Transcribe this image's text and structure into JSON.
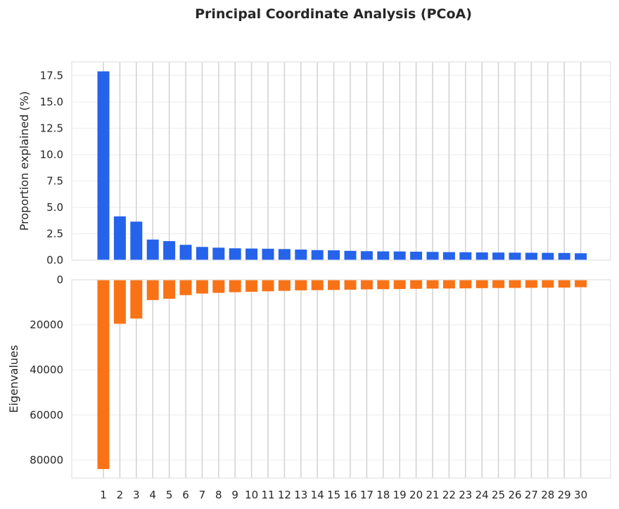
{
  "chart_data": {
    "title": "Principal Coordinate Analysis (PCoA)",
    "type": "bar",
    "categories": [
      "1",
      "2",
      "3",
      "4",
      "5",
      "6",
      "7",
      "8",
      "9",
      "10",
      "11",
      "12",
      "13",
      "14",
      "15",
      "16",
      "17",
      "18",
      "19",
      "20",
      "21",
      "22",
      "23",
      "24",
      "25",
      "26",
      "27",
      "28",
      "29",
      "30"
    ],
    "grid": true,
    "panels": [
      {
        "name": "proportion",
        "type": "bar",
        "ylabel": "Proportion explained (%)",
        "color": "#2563eb",
        "ylim": [
          0,
          18.8
        ],
        "yticks": [
          0.0,
          2.5,
          5.0,
          7.5,
          10.0,
          12.5,
          15.0,
          17.5
        ],
        "ytick_labels": [
          "0.0",
          "2.5",
          "5.0",
          "7.5",
          "10.0",
          "12.5",
          "15.0",
          "17.5"
        ],
        "values": [
          17.9,
          4.15,
          3.65,
          1.95,
          1.8,
          1.45,
          1.25,
          1.18,
          1.12,
          1.1,
          1.08,
          1.05,
          1.0,
          0.95,
          0.93,
          0.88,
          0.85,
          0.83,
          0.82,
          0.8,
          0.78,
          0.76,
          0.75,
          0.73,
          0.72,
          0.71,
          0.7,
          0.69,
          0.68,
          0.65
        ]
      },
      {
        "name": "eigenvalues",
        "type": "bar",
        "ylabel": "Eigenvalues",
        "color": "#f97316",
        "inverted": true,
        "ylim": [
          0,
          88000
        ],
        "yticks": [
          0,
          20000,
          40000,
          60000,
          80000
        ],
        "ytick_labels": [
          "0",
          "20000",
          "40000",
          "60000",
          "80000"
        ],
        "values": [
          84000,
          19500,
          17200,
          9000,
          8400,
          6800,
          6100,
          5800,
          5500,
          5300,
          5100,
          4900,
          4700,
          4600,
          4500,
          4400,
          4250,
          4150,
          4100,
          4000,
          3900,
          3850,
          3800,
          3700,
          3650,
          3600,
          3550,
          3500,
          3450,
          3300
        ]
      }
    ]
  }
}
